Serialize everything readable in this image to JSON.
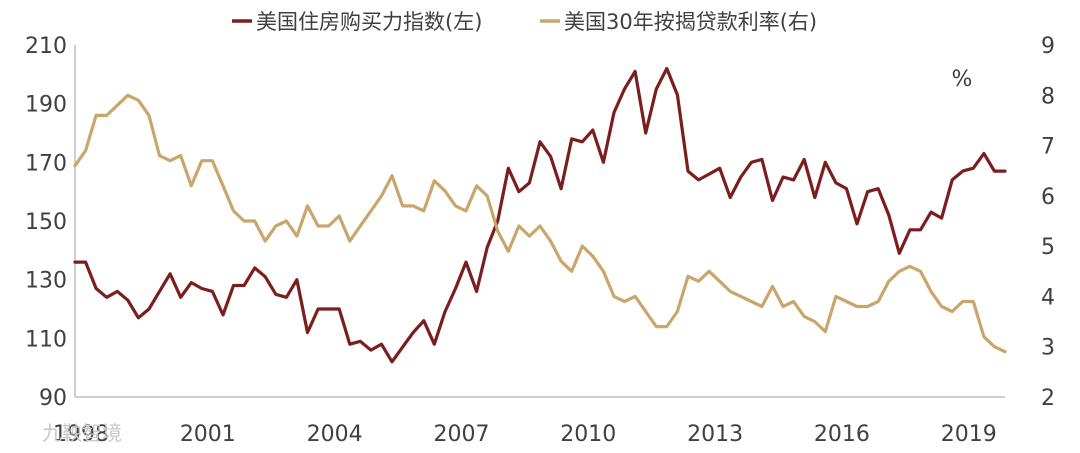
{
  "chart_data": {
    "type": "line",
    "x_start": 1998.0,
    "x_step": 0.25,
    "xlim": [
      1998.0,
      2020.0
    ],
    "x_ticks": [
      "1998",
      "2001",
      "2004",
      "2007",
      "2010",
      "2013",
      "2016",
      "2019"
    ],
    "y_left": {
      "ylim": [
        90,
        210
      ],
      "ticks": [
        90,
        110,
        130,
        150,
        170,
        190,
        210
      ]
    },
    "y_right": {
      "ylim": [
        2,
        9
      ],
      "ticks": [
        2,
        3,
        4,
        5,
        6,
        7,
        8,
        9
      ],
      "unit": "%"
    },
    "grid": false,
    "legend_position": "top-center",
    "series": [
      {
        "name": "美国住房购买力指数(左)",
        "axis": "left",
        "color": "#7b1e1e",
        "values": [
          136,
          136,
          127,
          124,
          126,
          123,
          117,
          120,
          126,
          132,
          124,
          129,
          127,
          126,
          118,
          128,
          128,
          134,
          131,
          125,
          124,
          130,
          112,
          120,
          120,
          120,
          108,
          109,
          106,
          108,
          102,
          107,
          112,
          116,
          108,
          119,
          127,
          136,
          126,
          141,
          150,
          168,
          160,
          163,
          177,
          172,
          161,
          178,
          177,
          181,
          170,
          187,
          195,
          201,
          180,
          195,
          202,
          193,
          167,
          164,
          166,
          168,
          158,
          165,
          170,
          171,
          157,
          165,
          164,
          171,
          158,
          170,
          163,
          161,
          149,
          160,
          161,
          152,
          139,
          147,
          147,
          153,
          151,
          164,
          167,
          168,
          173,
          167,
          167
        ]
      },
      {
        "name": "美国30年按揭贷款利率(右)",
        "axis": "right",
        "color": "#c9a66b",
        "values": [
          6.6,
          6.9,
          7.6,
          7.6,
          7.8,
          8.0,
          7.9,
          7.6,
          6.8,
          6.7,
          6.8,
          6.2,
          6.7,
          6.7,
          6.2,
          5.7,
          5.5,
          5.5,
          5.1,
          5.4,
          5.5,
          5.2,
          5.8,
          5.4,
          5.4,
          5.6,
          5.1,
          5.4,
          5.7,
          6.0,
          6.4,
          5.8,
          5.8,
          5.7,
          6.3,
          6.1,
          5.8,
          5.7,
          6.2,
          6.0,
          5.3,
          4.9,
          5.4,
          5.2,
          5.4,
          5.1,
          4.7,
          4.5,
          5.0,
          4.8,
          4.5,
          4.0,
          3.9,
          4.0,
          3.7,
          3.4,
          3.4,
          3.7,
          4.4,
          4.3,
          4.5,
          4.3,
          4.1,
          4.0,
          3.9,
          3.8,
          4.2,
          3.8,
          3.9,
          3.6,
          3.5,
          3.3,
          4.0,
          3.9,
          3.8,
          3.8,
          3.9,
          4.3,
          4.5,
          4.6,
          4.5,
          4.1,
          3.8,
          3.7,
          3.9,
          3.9,
          3.2,
          3.0,
          2.9
        ]
      }
    ]
  },
  "watermark": "九鞅智境"
}
